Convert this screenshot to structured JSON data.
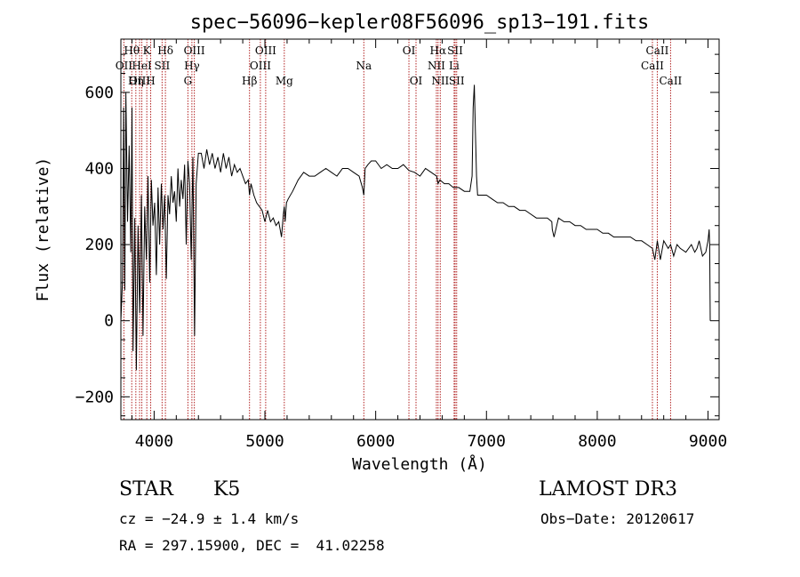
{
  "chart_data": {
    "type": "line",
    "title": "spec−56096−kepler08F56096_sp13−191.fits",
    "xlabel": "Wavelength (Å)",
    "ylabel": "Flux (relative)",
    "xlim": [
      3700,
      9100
    ],
    "ylim": [
      -260,
      740
    ],
    "xticks": [
      4000,
      5000,
      6000,
      7000,
      8000,
      9000
    ],
    "yticks": [
      -200,
      0,
      200,
      400,
      600
    ],
    "xtick_labels": [
      "4000",
      "5000",
      "6000",
      "7000",
      "8000",
      "9000"
    ],
    "ytick_labels": [
      "−200",
      "0",
      "200",
      "400",
      "600"
    ],
    "spectrum": {
      "x": [
        3700,
        3715,
        3725,
        3735,
        3745,
        3760,
        3775,
        3790,
        3800,
        3810,
        3825,
        3840,
        3855,
        3870,
        3885,
        3900,
        3915,
        3930,
        3945,
        3960,
        3975,
        3990,
        4005,
        4020,
        4035,
        4050,
        4065,
        4080,
        4095,
        4110,
        4125,
        4140,
        4155,
        4170,
        4185,
        4200,
        4215,
        4230,
        4245,
        4260,
        4275,
        4290,
        4305,
        4320,
        4335,
        4350,
        4365,
        4380,
        4400,
        4425,
        4450,
        4475,
        4500,
        4525,
        4550,
        4575,
        4600,
        4625,
        4650,
        4675,
        4700,
        4725,
        4750,
        4775,
        4800,
        4825,
        4850,
        4861,
        4875,
        4900,
        4925,
        4950,
        4975,
        5000,
        5025,
        5050,
        5075,
        5100,
        5125,
        5150,
        5167,
        5175,
        5183,
        5195,
        5210,
        5250,
        5300,
        5350,
        5400,
        5450,
        5500,
        5550,
        5600,
        5650,
        5700,
        5750,
        5800,
        5850,
        5880,
        5893,
        5905,
        5930,
        5960,
        6000,
        6050,
        6100,
        6150,
        6200,
        6250,
        6300,
        6350,
        6400,
        6450,
        6500,
        6550,
        6563,
        6580,
        6620,
        6660,
        6700,
        6750,
        6800,
        6850,
        6870,
        6880,
        6890,
        6900,
        6910,
        6920,
        6940,
        6960,
        7000,
        7050,
        7100,
        7150,
        7200,
        7250,
        7300,
        7350,
        7400,
        7450,
        7500,
        7550,
        7590,
        7594,
        7610,
        7650,
        7700,
        7750,
        7800,
        7850,
        7900,
        7950,
        8000,
        8050,
        8100,
        8150,
        8200,
        8250,
        8300,
        8350,
        8400,
        8450,
        8498,
        8520,
        8542,
        8570,
        8600,
        8640,
        8662,
        8690,
        8720,
        8750,
        8800,
        8850,
        8880,
        8900,
        8920,
        8950,
        8980,
        9000,
        9010,
        9015,
        9020
      ],
      "y": [
        0,
        110,
        560,
        80,
        600,
        260,
        460,
        180,
        560,
        -80,
        270,
        -130,
        250,
        20,
        330,
        -40,
        300,
        160,
        380,
        100,
        370,
        250,
        310,
        120,
        350,
        200,
        360,
        240,
        330,
        110,
        330,
        280,
        380,
        310,
        340,
        260,
        400,
        300,
        370,
        320,
        410,
        200,
        420,
        360,
        160,
        430,
        -40,
        360,
        440,
        440,
        400,
        450,
        410,
        440,
        400,
        430,
        390,
        440,
        400,
        430,
        380,
        410,
        390,
        400,
        380,
        360,
        370,
        330,
        360,
        330,
        310,
        300,
        290,
        260,
        290,
        260,
        270,
        250,
        260,
        220,
        280,
        300,
        260,
        310,
        320,
        340,
        370,
        390,
        380,
        380,
        390,
        400,
        390,
        380,
        400,
        400,
        390,
        380,
        350,
        330,
        400,
        410,
        420,
        420,
        400,
        410,
        400,
        400,
        410,
        395,
        390,
        380,
        400,
        390,
        380,
        360,
        370,
        360,
        360,
        350,
        350,
        340,
        340,
        380,
        560,
        620,
        500,
        380,
        330,
        330,
        330,
        330,
        320,
        310,
        310,
        300,
        300,
        290,
        290,
        280,
        270,
        270,
        270,
        260,
        240,
        220,
        270,
        260,
        260,
        250,
        250,
        240,
        240,
        240,
        230,
        230,
        220,
        220,
        220,
        220,
        210,
        210,
        200,
        190,
        160,
        210,
        160,
        210,
        190,
        200,
        170,
        200,
        190,
        180,
        200,
        180,
        190,
        210,
        170,
        180,
        210,
        240,
        200,
        0
      ]
    },
    "annotations": [
      {
        "label": "Hθ",
        "x": 3798,
        "row": 1
      },
      {
        "label": "OII",
        "x": 3727,
        "row": 2
      },
      {
        "label": "OIII",
        "x": 3869,
        "row": 3
      },
      {
        "label": "K",
        "x": 3934,
        "row": 1
      },
      {
        "label": "HeI",
        "x": 3889,
        "row": 2
      },
      {
        "label": "Hη",
        "x": 3835,
        "row": 3
      },
      {
        "label": "H",
        "x": 3969,
        "row": 3
      },
      {
        "label": "Hδ",
        "x": 4102,
        "row": 1
      },
      {
        "label": "SII",
        "x": 4072,
        "row": 2
      },
      {
        "label": "OIII",
        "x": 4363,
        "row": 1
      },
      {
        "label": "Hγ",
        "x": 4341,
        "row": 2
      },
      {
        "label": "G",
        "x": 4305,
        "row": 3
      },
      {
        "label": "Hβ",
        "x": 4861,
        "row": 3
      },
      {
        "label": "OIII",
        "x": 5007,
        "row": 1
      },
      {
        "label": "OIII",
        "x": 4959,
        "row": 2
      },
      {
        "label": "Mg",
        "x": 5175,
        "row": 3
      },
      {
        "label": "Na",
        "x": 5893,
        "row": 2
      },
      {
        "label": "OI",
        "x": 6300,
        "row": 1
      },
      {
        "label": "OI",
        "x": 6364,
        "row": 3
      },
      {
        "label": "Hα",
        "x": 6563,
        "row": 1
      },
      {
        "label": "NII",
        "x": 6548,
        "row": 2
      },
      {
        "label": "NII",
        "x": 6583,
        "row": 3
      },
      {
        "label": "SII",
        "x": 6717,
        "row": 1
      },
      {
        "label": "Li",
        "x": 6708,
        "row": 2
      },
      {
        "label": "SII",
        "x": 6731,
        "row": 3
      },
      {
        "label": "CaII",
        "x": 8542,
        "row": 1
      },
      {
        "label": "CaII",
        "x": 8498,
        "row": 2
      },
      {
        "label": "CaII",
        "x": 8662,
        "row": 3
      }
    ]
  },
  "info": {
    "class": "STAR",
    "subclass": "K5",
    "survey": "LAMOST DR3",
    "cz": "cz = −24.9 ± 1.4 km/s",
    "obs_date": "Obs−Date: 20120617",
    "coords": "RA = 297.15900, DEC =  41.02258"
  }
}
